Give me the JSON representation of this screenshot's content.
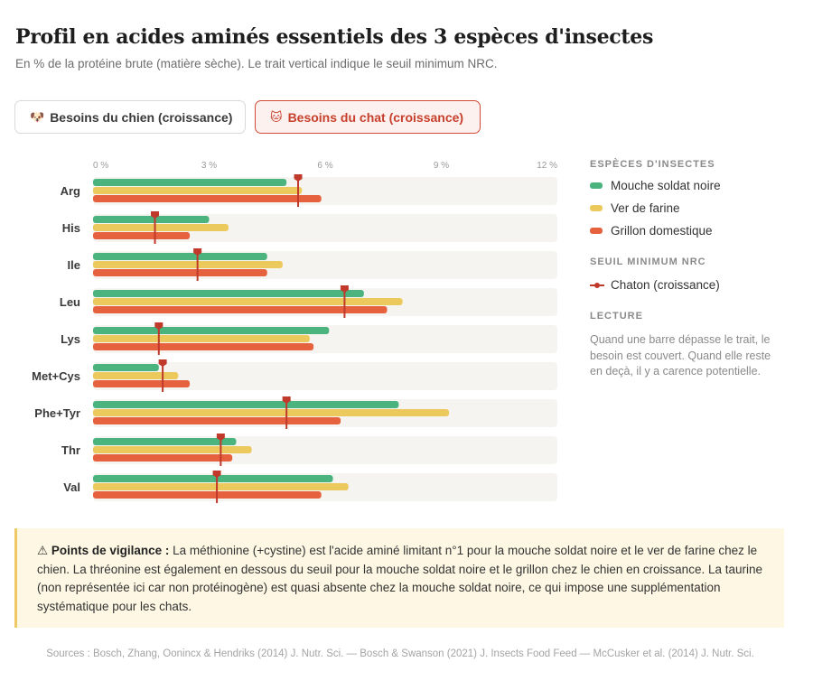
{
  "header": {
    "title": "Profil en acides aminés essentiels des 3 espèces d'insectes",
    "subtitle": "En % de la protéine brute (matière sèche). Le trait vertical indique le seuil minimum NRC."
  },
  "tabs": [
    {
      "emoji": "🐶",
      "label": "Besoins du chien (croissance)",
      "active": false
    },
    {
      "emoji": "🐱",
      "label": "Besoins du chat (croissance)",
      "active": true
    }
  ],
  "chart_data": {
    "type": "bar",
    "orientation": "horizontal",
    "categories": [
      "Arg",
      "His",
      "Ile",
      "Leu",
      "Lys",
      "Met+Cys",
      "Phe+Tyr",
      "Thr",
      "Val"
    ],
    "x_ticks": [
      "0 %",
      "3 %",
      "6 %",
      "9 %",
      "12 %"
    ],
    "xlim": [
      0,
      12
    ],
    "series": [
      {
        "name": "Mouche soldat noire",
        "color": "#4bb37e",
        "values": [
          5.0,
          3.0,
          4.5,
          7.0,
          6.1,
          1.7,
          7.9,
          3.7,
          6.2
        ]
      },
      {
        "name": "Ver de farine",
        "color": "#ecc95c",
        "values": [
          5.4,
          3.5,
          4.9,
          8.0,
          5.6,
          2.2,
          9.2,
          4.1,
          6.6
        ]
      },
      {
        "name": "Grillon domestique",
        "color": "#e6623f",
        "values": [
          5.9,
          2.5,
          4.5,
          7.6,
          5.7,
          2.5,
          6.4,
          3.6,
          5.9
        ]
      }
    ],
    "threshold": {
      "name": "Chaton (croissance)",
      "color": "#c0392b",
      "values": [
        5.3,
        1.6,
        2.7,
        6.5,
        1.7,
        1.8,
        5.0,
        3.3,
        3.2
      ]
    },
    "grid": false
  },
  "legend": {
    "species_heading": "ESPÈCES D'INSECTES",
    "threshold_heading": "SEUIL MINIMUM NRC",
    "reading_heading": "LECTURE",
    "reading_text": "Quand une barre dépasse le trait, le besoin est couvert. Quand elle reste en deçà, il y a carence potentielle."
  },
  "alert": {
    "icon": "⚠",
    "label": "Points de vigilance :",
    "text": " La méthionine (+cystine) est l'acide aminé limitant n°1 pour la mouche soldat noire et le ver de farine chez le chien. La thréonine est également en dessous du seuil pour la mouche soldat noire et le grillon chez le chien en croissance. La taurine (non représentée ici car non protéinogène) est quasi absente chez la mouche soldat noire, ce qui impose une supplémentation systématique pour les chats."
  },
  "footer": {
    "sources": "Sources : Bosch, Zhang, Oonincx & Hendriks (2014) J. Nutr. Sci. — Bosch & Swanson (2021) J. Insects Food Feed — McCusker et al. (2014) J. Nutr. Sci."
  }
}
